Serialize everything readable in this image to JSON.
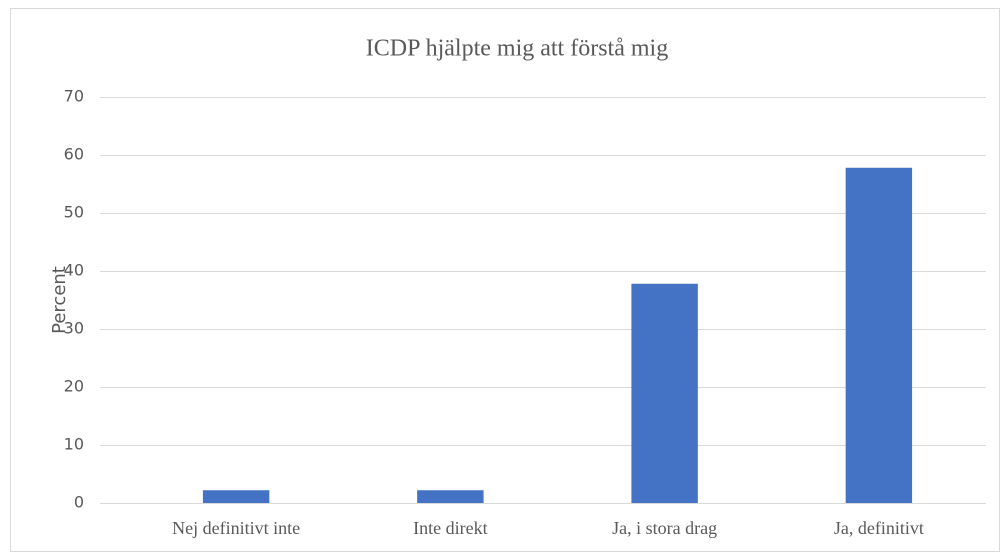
{
  "chart_data": {
    "type": "bar",
    "title": "ICDP hjälpte mig att förstå mig",
    "y_label": "Percent",
    "categories": [
      "Nej definitivt inte",
      "Inte direkt",
      "Ja, i stora drag",
      "Ja, definitivt"
    ],
    "values": [
      2.2,
      2.2,
      37.8,
      57.8
    ],
    "color": "#4472c4",
    "ylim": [
      0,
      70
    ],
    "yticks": [
      0,
      10,
      20,
      30,
      40,
      50,
      60,
      70
    ],
    "grid": true
  }
}
